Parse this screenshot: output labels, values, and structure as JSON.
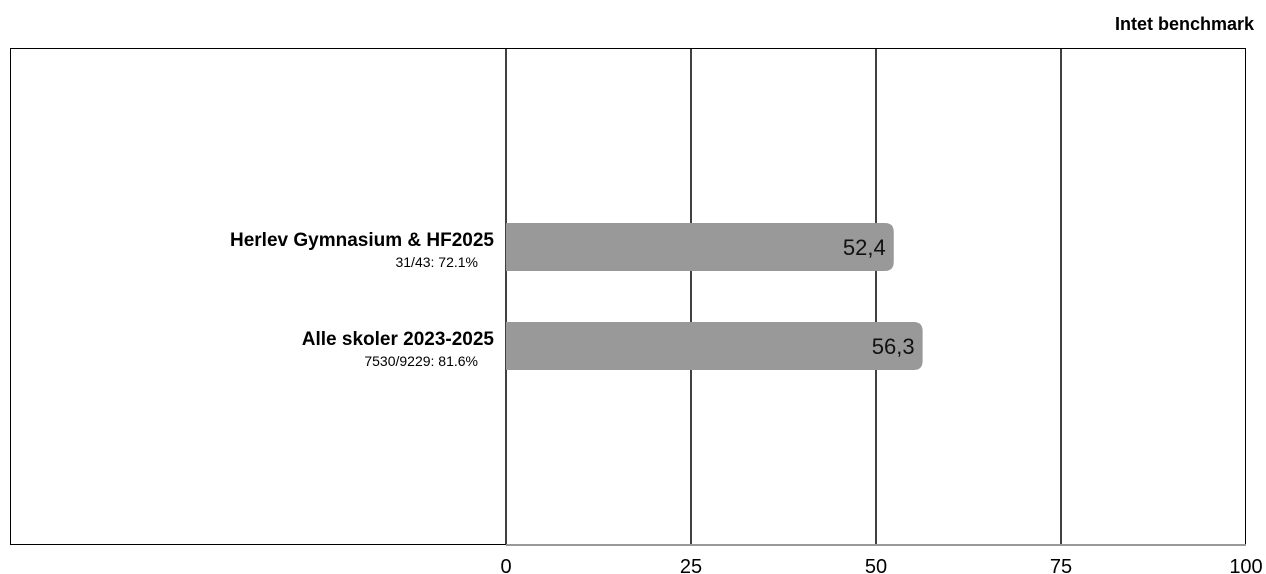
{
  "benchmark_label": "Intet benchmark",
  "chart_data": {
    "type": "bar",
    "orientation": "horizontal",
    "categories": [
      {
        "name": "Herlev Gymnasium & HF2025",
        "sub": "31/43: 72.1%"
      },
      {
        "name": "Alle skoler 2023-2025",
        "sub": "7530/9229: 81.6%"
      }
    ],
    "values": [
      52.4,
      56.3
    ],
    "value_labels": [
      "52,4",
      "56,3"
    ],
    "xlim": [
      0,
      100
    ],
    "xticks": [
      0,
      25,
      50,
      75,
      100
    ],
    "grid": true,
    "bar_color": "#999999"
  }
}
